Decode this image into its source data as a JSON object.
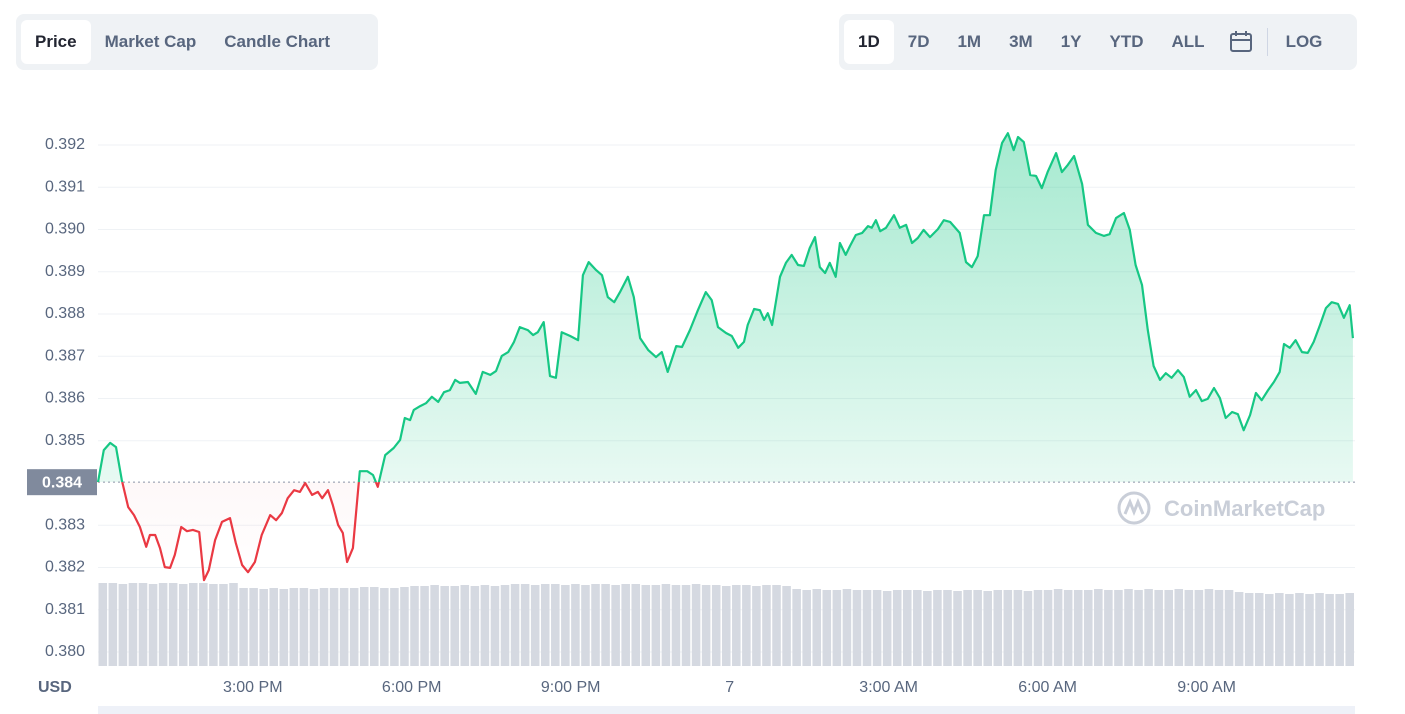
{
  "controls": {
    "tabs": [
      "Price",
      "Market Cap",
      "Candle Chart"
    ],
    "active_tab": 0,
    "ranges": [
      "1D",
      "7D",
      "1M",
      "3M",
      "1Y",
      "YTD",
      "ALL"
    ],
    "active_range": 0,
    "scale_button": "LOG"
  },
  "chart_data": {
    "type": "line",
    "currency": "USD",
    "watermark": "CoinMarketCap",
    "up_color": "#16c784",
    "down_color": "#ea3943",
    "grid": true,
    "reference": {
      "value": 0.38402,
      "label": "0.384"
    },
    "xlim": [
      12.08,
      35.8
    ],
    "ylim": [
      0.3797,
      0.3929
    ],
    "xticks": [
      {
        "value": 15,
        "label": "3:00 PM"
      },
      {
        "value": 18,
        "label": "6:00 PM"
      },
      {
        "value": 21,
        "label": "9:00 PM"
      },
      {
        "value": 24,
        "label": "7"
      },
      {
        "value": 27,
        "label": "3:00 AM"
      },
      {
        "value": 30,
        "label": "6:00 AM"
      },
      {
        "value": 33,
        "label": "9:00 AM"
      }
    ],
    "yticks": [
      {
        "value": 0.38,
        "label": "0.380"
      },
      0.381,
      0.382,
      0.383,
      0.385,
      0.386,
      0.387,
      0.388,
      0.389,
      {
        "value": 0.39,
        "label": "0.390"
      },
      0.391,
      0.392
    ],
    "x": [
      12.08,
      12.19,
      12.31,
      12.42,
      12.53,
      12.65,
      12.76,
      12.87,
      12.99,
      13.06,
      13.16,
      13.25,
      13.34,
      13.44,
      13.53,
      13.65,
      13.76,
      13.87,
      13.99,
      14.08,
      14.17,
      14.29,
      14.42,
      14.57,
      14.68,
      14.8,
      14.91,
      15.04,
      15.17,
      15.33,
      15.44,
      15.55,
      15.66,
      15.78,
      15.89,
      15.99,
      16.12,
      16.23,
      16.31,
      16.42,
      16.51,
      16.61,
      16.7,
      16.78,
      16.89,
      17.02,
      17.16,
      17.27,
      17.36,
      17.5,
      17.66,
      17.78,
      17.87,
      17.97,
      18.04,
      18.16,
      18.27,
      18.38,
      18.5,
      18.61,
      18.72,
      18.82,
      18.91,
      19.06,
      19.21,
      19.34,
      19.48,
      19.59,
      19.7,
      19.82,
      19.93,
      20.04,
      20.19,
      20.29,
      20.38,
      20.49,
      20.61,
      20.72,
      20.83,
      20.99,
      21.14,
      21.23,
      21.34,
      21.48,
      21.59,
      21.7,
      21.82,
      21.93,
      22.08,
      22.19,
      22.31,
      22.46,
      22.61,
      22.72,
      22.83,
      22.99,
      23.1,
      23.25,
      23.4,
      23.55,
      23.66,
      23.78,
      23.93,
      24.04,
      24.16,
      24.27,
      24.34,
      24.46,
      24.57,
      24.65,
      24.72,
      24.8,
      24.95,
      25.06,
      25.17,
      25.29,
      25.4,
      25.51,
      25.61,
      25.7,
      25.8,
      25.89,
      26,
      26.08,
      26.19,
      26.27,
      26.38,
      26.5,
      26.61,
      26.68,
      26.76,
      26.84,
      26.95,
      27.1,
      27.21,
      27.33,
      27.44,
      27.55,
      27.66,
      27.78,
      27.93,
      28.04,
      28.16,
      28.34,
      28.46,
      28.57,
      28.68,
      28.8,
      28.91,
      29.02,
      29.14,
      29.25,
      29.36,
      29.44,
      29.55,
      29.67,
      29.78,
      29.89,
      30,
      30.16,
      30.27,
      30.38,
      30.5,
      30.65,
      30.76,
      30.91,
      31.06,
      31.17,
      31.29,
      31.44,
      31.55,
      31.66,
      31.78,
      31.89,
      32,
      32.12,
      32.23,
      32.34,
      32.46,
      32.57,
      32.68,
      32.8,
      32.91,
      33.02,
      33.14,
      33.25,
      33.36,
      33.48,
      33.59,
      33.7,
      33.82,
      33.93,
      34.04,
      34.16,
      34.27,
      34.38,
      34.46,
      34.57,
      34.68,
      34.8,
      34.91,
      35.02,
      35.14,
      35.25,
      35.36,
      35.48,
      35.59,
      35.7,
      35.76
    ],
    "values": [
      0.38402,
      0.38478,
      0.38495,
      0.38485,
      0.38407,
      0.38343,
      0.38324,
      0.38296,
      0.38249,
      0.38277,
      0.38277,
      0.38246,
      0.38201,
      0.38199,
      0.3823,
      0.38296,
      0.38286,
      0.38289,
      0.38284,
      0.3817,
      0.38194,
      0.38265,
      0.38308,
      0.38317,
      0.38258,
      0.38206,
      0.38189,
      0.38213,
      0.38277,
      0.38324,
      0.38312,
      0.38329,
      0.38364,
      0.38383,
      0.38379,
      0.384,
      0.38372,
      0.38379,
      0.38364,
      0.38383,
      0.38348,
      0.38301,
      0.38282,
      0.38213,
      0.38246,
      0.38428,
      0.38428,
      0.38419,
      0.38391,
      0.38466,
      0.38483,
      0.38502,
      0.38554,
      0.38549,
      0.38573,
      0.38582,
      0.38589,
      0.38604,
      0.38592,
      0.38615,
      0.3862,
      0.38644,
      0.38637,
      0.38639,
      0.38611,
      0.38663,
      0.38656,
      0.38665,
      0.38701,
      0.3871,
      0.38734,
      0.38769,
      0.38762,
      0.3875,
      0.38757,
      0.38781,
      0.38653,
      0.38649,
      0.38757,
      0.38748,
      0.38738,
      0.38892,
      0.38923,
      0.38904,
      0.38892,
      0.3884,
      0.38828,
      0.38852,
      0.38888,
      0.3884,
      0.38743,
      0.38715,
      0.38698,
      0.3871,
      0.38663,
      0.38724,
      0.38722,
      0.38762,
      0.38809,
      0.38852,
      0.38833,
      0.38769,
      0.38755,
      0.38748,
      0.3872,
      0.38734,
      0.38774,
      0.38812,
      0.38809,
      0.38786,
      0.38802,
      0.38774,
      0.38888,
      0.38921,
      0.3894,
      0.38916,
      0.38914,
      0.38956,
      0.38982,
      0.38911,
      0.38897,
      0.38921,
      0.38888,
      0.38968,
      0.3894,
      0.38961,
      0.38987,
      0.38992,
      0.39008,
      0.39004,
      0.39022,
      0.38996,
      0.39004,
      0.39034,
      0.39004,
      0.39011,
      0.38968,
      0.3898,
      0.38999,
      0.38982,
      0.39001,
      0.39022,
      0.39018,
      0.38992,
      0.38923,
      0.38911,
      0.38937,
      0.39034,
      0.39034,
      0.39141,
      0.39205,
      0.39228,
      0.39188,
      0.39219,
      0.39207,
      0.39129,
      0.39127,
      0.39098,
      0.39136,
      0.39181,
      0.39136,
      0.39153,
      0.39174,
      0.39108,
      0.39011,
      0.38992,
      0.38985,
      0.38989,
      0.39027,
      0.39039,
      0.38999,
      0.38916,
      0.38869,
      0.38762,
      0.38677,
      0.38644,
      0.3866,
      0.38649,
      0.38667,
      0.38651,
      0.38604,
      0.3862,
      0.38594,
      0.38599,
      0.38625,
      0.38601,
      0.38554,
      0.38568,
      0.38563,
      0.38525,
      0.38561,
      0.38613,
      0.38596,
      0.3862,
      0.38639,
      0.38663,
      0.38729,
      0.3872,
      0.38738,
      0.3871,
      0.38708,
      0.38734,
      0.38774,
      0.38814,
      0.38828,
      0.38824,
      0.38791,
      0.38821,
      0.38743
    ],
    "volume": {
      "color": "#d5d9e1",
      "values": [
        83,
        83,
        82,
        83,
        83,
        82,
        83,
        83,
        82,
        83,
        83,
        82,
        82,
        83,
        78,
        78,
        77,
        78,
        77,
        78,
        78,
        77,
        78,
        78,
        78,
        78,
        79,
        79,
        78,
        78,
        79,
        80,
        80,
        81,
        80,
        80,
        81,
        80,
        81,
        80,
        81,
        82,
        82,
        81,
        82,
        82,
        81,
        82,
        81,
        82,
        82,
        81,
        82,
        82,
        81,
        81,
        82,
        81,
        81,
        82,
        81,
        81,
        80,
        81,
        81,
        80,
        81,
        81,
        80,
        77,
        76,
        77,
        76,
        76,
        77,
        76,
        76,
        76,
        75,
        76,
        76,
        76,
        75,
        76,
        76,
        75,
        76,
        76,
        75,
        76,
        76,
        76,
        75,
        76,
        76,
        77,
        76,
        76,
        76,
        77,
        76,
        76,
        77,
        76,
        77,
        76,
        76,
        77,
        76,
        76,
        77,
        76,
        76,
        74,
        73,
        73,
        72,
        73,
        72,
        73,
        72,
        73,
        72,
        72,
        73
      ]
    }
  }
}
